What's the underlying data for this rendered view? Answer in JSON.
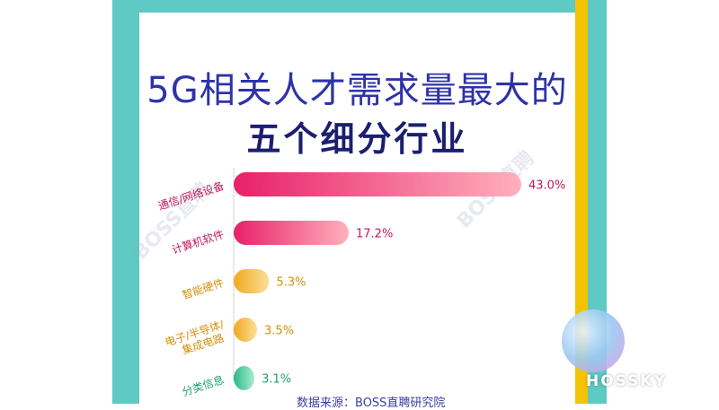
{
  "title_line1": "5G相关人才需求量最大的",
  "title_line2": "五个细分行业",
  "watermark": "BOSS直聘",
  "footer": "数据来源：BOSS直聘研究院",
  "logo": "HOSSKY",
  "colors": {
    "frame": "#5fc9c4",
    "accent": "#f4c400",
    "title": "#2e33a8",
    "pink": "#e8306f",
    "orange": "#f0a81e",
    "green": "#2bb98a"
  },
  "chart_data": {
    "type": "bar",
    "orientation": "horizontal",
    "categories": [
      [
        "通信/网络设备"
      ],
      [
        "计算机软件"
      ],
      [
        "智能硬件"
      ],
      [
        "电子/半导体/",
        "集成电路"
      ],
      [
        "分类信息"
      ]
    ],
    "values": [
      43.0,
      17.2,
      5.3,
      3.5,
      3.1
    ],
    "value_labels": [
      "43.0%",
      "17.2%",
      "5.3%",
      "3.5%",
      "3.1%"
    ],
    "bar_colors": [
      [
        "#e8206a",
        "#ffb0bc"
      ],
      [
        "#e8206a",
        "#ffb0bc"
      ],
      [
        "#f0a81e",
        "#fbe098"
      ],
      [
        "#f0a81e",
        "#fbe098"
      ],
      [
        "#2bb98a",
        "#a9ecd0"
      ]
    ],
    "label_colors": [
      "#c2185b",
      "#c2185b",
      "#d4900c",
      "#d4900c",
      "#1f9e74"
    ]
  }
}
